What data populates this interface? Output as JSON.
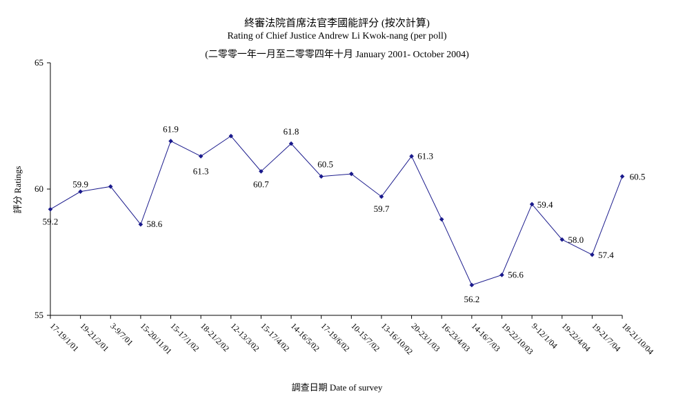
{
  "chart_data": {
    "type": "line",
    "title": "終審法院首席法官李國能評分 (按次計算)",
    "subtitle": "Rating of Chief Justice Andrew Li Kwok-nang  (per poll)",
    "subtitle2": "(二零零一年一月至二零零四年十月 January 2001- October 2004)",
    "xlabel": "調查日期 Date of survey",
    "ylabel": "評分 Ratings",
    "ylim": [
      55,
      65
    ],
    "yticks": [
      "55",
      "60",
      "65"
    ],
    "grid": false,
    "categories": [
      "17-19/1/01",
      "19-21/2/01",
      "3-9/7/01",
      "15-20/11/01",
      "15-17/1/02",
      "18-21/2/02",
      "12-13/3/02",
      "15-17/4/02",
      "14-16/5/02",
      "17-19/6/02",
      "10-15/7/02",
      "13-16/10/02",
      "20-23/1/03",
      "16-23/4/03",
      "14-16/7/03",
      "19-22/10/03",
      "9-12/1/04",
      "19-22/4/04",
      "19-21/7/04",
      "18-21/10/04"
    ],
    "values": [
      59.2,
      59.9,
      60.1,
      58.6,
      61.9,
      61.3,
      62.1,
      60.7,
      61.8,
      60.5,
      60.6,
      59.7,
      61.3,
      58.8,
      56.2,
      56.6,
      59.4,
      58.0,
      57.4,
      60.5
    ],
    "data_labels": [
      "59.2",
      "59.9",
      "",
      "58.6",
      "61.9",
      "61.3",
      "",
      "60.7",
      "61.8",
      "60.5",
      "",
      "59.7",
      "61.3",
      "",
      "56.2",
      "56.6",
      "59.4",
      "58.0",
      "57.4",
      "60.5"
    ],
    "line_color": "#1a1a8c",
    "marker_color": "#1a1a8c"
  }
}
